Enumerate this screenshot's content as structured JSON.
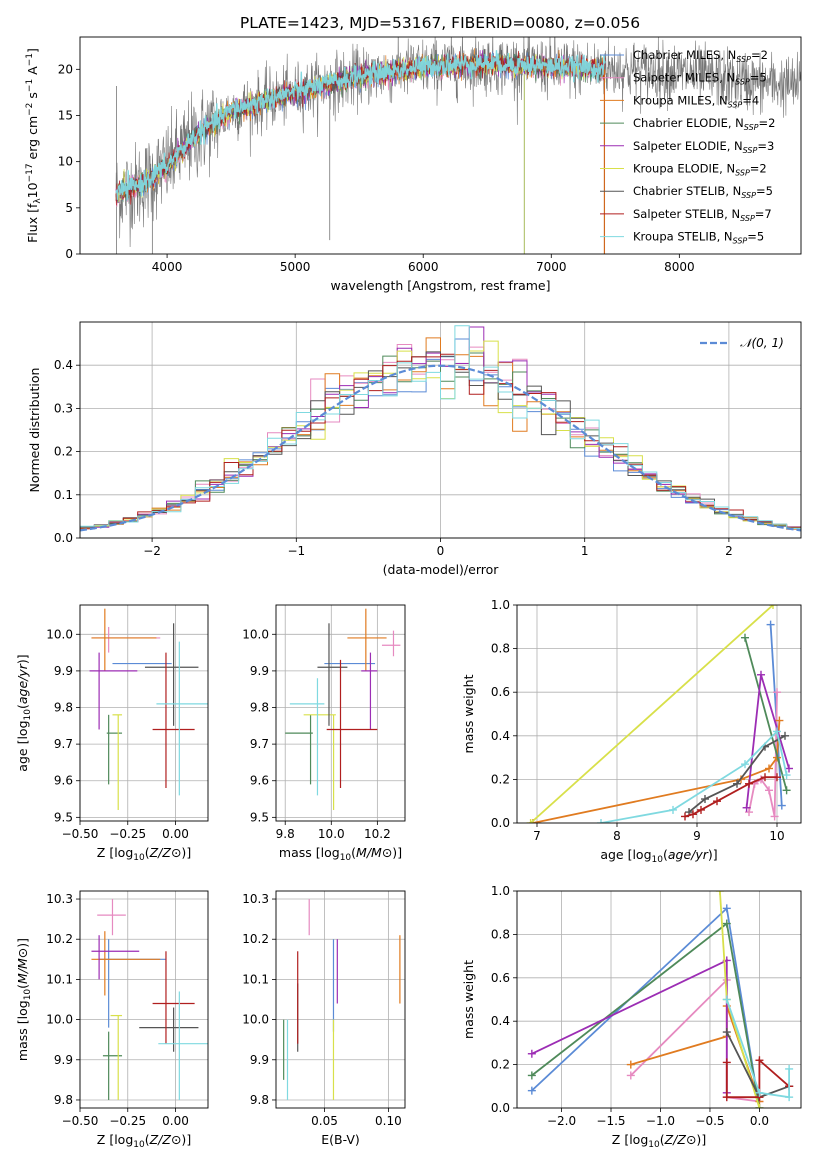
{
  "figure_title": "PLATE=1423, MJD=53167, FIBERID=0080, z=0.056",
  "colors": {
    "Chabrier MILES": "#5b8bd6",
    "Salpeter MILES": "#e68ac0",
    "Kroupa MILES": "#e07b20",
    "Chabrier ELODIE": "#4f8a5a",
    "Salpeter ELODIE": "#9c2db4",
    "Kroupa ELODIE": "#d8e04a",
    "Chabrier STELIB": "#555555",
    "Salpeter STELIB": "#b01f1f",
    "Kroupa STELIB": "#7fd9e0",
    "normal": "#5b8bd6",
    "grid": "#b0b0b0",
    "data": "#777777"
  },
  "chart_data": [
    {
      "id": "spectrum",
      "type": "line",
      "title": "PLATE=1423, MJD=53167, FIBERID=0080, z=0.056",
      "xlabel": "wavelength [Angstrom, rest frame]",
      "ylabel": "Flux [fλ10⁻¹⁷ erg cm⁻² s⁻¹ A⁻¹]",
      "xlim": [
        3320,
        8950
      ],
      "ylim": [
        0,
        23.5
      ],
      "xticks": [
        4000,
        5000,
        6000,
        7000,
        8000
      ],
      "yticks": [
        0,
        5,
        10,
        15,
        20
      ],
      "grid": false,
      "legend_position": "top-right",
      "legend": [
        {
          "label": "Chabrier MILES, N",
          "sub": "SSP",
          "suffix": "=2"
        },
        {
          "label": "Salpeter MILES, N",
          "sub": "SSP",
          "suffix": "=5"
        },
        {
          "label": "Kroupa MILES, N",
          "sub": "SSP",
          "suffix": "=4"
        },
        {
          "label": "Chabrier ELODIE, N",
          "sub": "SSP",
          "suffix": "=2"
        },
        {
          "label": "Salpeter ELODIE, N",
          "sub": "SSP",
          "suffix": "=3"
        },
        {
          "label": "Kroupa ELODIE, N",
          "sub": "SSP",
          "suffix": "=2"
        },
        {
          "label": "Chabrier STELIB, N",
          "sub": "SSP",
          "suffix": "=5"
        },
        {
          "label": "Salpeter STELIB, N",
          "sub": "SSP",
          "suffix": "=7"
        },
        {
          "label": "Kroupa STELIB, N",
          "sub": "SSP",
          "suffix": "=5"
        }
      ],
      "continuum_knots": [
        [
          3600,
          6.5
        ],
        [
          3800,
          7.5
        ],
        [
          4000,
          9.5
        ],
        [
          4200,
          12.5
        ],
        [
          4500,
          15.5
        ],
        [
          5000,
          17.5
        ],
        [
          5500,
          19.2
        ],
        [
          6000,
          20.2
        ],
        [
          6500,
          20.6
        ],
        [
          7000,
          20.2
        ],
        [
          7500,
          20.0
        ],
        [
          8000,
          19.6
        ],
        [
          8500,
          18.7
        ],
        [
          8950,
          18.2
        ]
      ],
      "model_x_range": [
        3600,
        7420
      ],
      "data_x_range": [
        3600,
        8950
      ],
      "spikes": [
        {
          "x": 3605,
          "ylow": 0,
          "yhigh": 18.2
        },
        {
          "x": 3885,
          "ylow": 0,
          "yhigh": 7
        },
        {
          "x": 5270,
          "ylow": 1.5,
          "yhigh": 17
        },
        {
          "x": 6790,
          "ylow": 0,
          "yhigh": 19.5
        },
        {
          "x": 7415,
          "ylow": 0,
          "yhigh": 20
        }
      ]
    },
    {
      "id": "residual-histogram",
      "type": "histogram",
      "xlabel": "(data-model)/error",
      "ylabel": "Normed distribution",
      "xlim": [
        -2.5,
        2.5
      ],
      "ylim": [
        0,
        0.5
      ],
      "xticks": [
        -2,
        -1,
        0,
        1,
        2
      ],
      "yticks": [
        0.0,
        0.1,
        0.2,
        0.3,
        0.4
      ],
      "grid": true,
      "bin_width": 0.1,
      "legend_position": "top-right",
      "legend": [
        {
          "label": "𝒩(0, 1)"
        }
      ],
      "reference_curve": {
        "name": "N(0,1)",
        "mean": 0,
        "sigma": 1,
        "style": "dashed"
      }
    },
    {
      "id": "age-vs-Z",
      "type": "scatter",
      "xlabel": "Z [log₁₀(Z/Z⊙)]",
      "ylabel": "age  [log₁₀(age/yr)]",
      "xlim": [
        -0.5,
        0.17
      ],
      "ylim": [
        9.49,
        10.08
      ],
      "xticks": [
        -0.5,
        -0.25,
        0.0
      ],
      "xtick_labels": [
        "−0.50",
        "−0.25",
        "0.00"
      ],
      "yticks": [
        9.5,
        9.6,
        9.7,
        9.8,
        9.9,
        10.0
      ],
      "grid": true,
      "points": [
        {
          "x": -0.33,
          "xlo": -0.33,
          "xhi": -0.02,
          "y": 9.92,
          "ylo": 9.92,
          "yhi": 9.92,
          "series": "Chabrier MILES"
        },
        {
          "x": -0.35,
          "xlo": -0.44,
          "xhi": -0.08,
          "y": 9.99,
          "ylo": 9.95,
          "yhi": 10.02,
          "series": "Salpeter MILES"
        },
        {
          "x": -0.37,
          "xlo": -0.44,
          "xhi": -0.1,
          "y": 9.99,
          "ylo": 9.9,
          "yhi": 10.07,
          "series": "Kroupa MILES"
        },
        {
          "x": -0.35,
          "xlo": -0.36,
          "xhi": -0.28,
          "y": 9.73,
          "ylo": 9.59,
          "yhi": 9.78,
          "series": "Chabrier ELODIE"
        },
        {
          "x": -0.4,
          "xlo": -0.45,
          "xhi": -0.2,
          "y": 9.9,
          "ylo": 9.74,
          "yhi": 9.95,
          "series": "Salpeter ELODIE"
        },
        {
          "x": -0.3,
          "xlo": -0.33,
          "xhi": -0.28,
          "y": 9.78,
          "ylo": 9.52,
          "yhi": 9.78,
          "series": "Kroupa ELODIE"
        },
        {
          "x": -0.01,
          "xlo": -0.16,
          "xhi": 0.12,
          "y": 9.91,
          "ylo": 9.75,
          "yhi": 10.03,
          "series": "Chabrier STELIB"
        },
        {
          "x": -0.05,
          "xlo": -0.12,
          "xhi": 0.1,
          "y": 9.74,
          "ylo": 9.58,
          "yhi": 9.95,
          "series": "Salpeter STELIB"
        },
        {
          "x": 0.02,
          "xlo": -0.1,
          "xhi": 0.17,
          "y": 9.81,
          "ylo": 9.56,
          "yhi": 9.98,
          "series": "Kroupa STELIB"
        }
      ]
    },
    {
      "id": "age-vs-mass",
      "type": "scatter",
      "xlabel": "mass [log₁₀(M/M⊙)]",
      "ylabel": "",
      "xlim": [
        9.76,
        10.32
      ],
      "ylim": [
        9.49,
        10.08
      ],
      "xticks": [
        9.8,
        10.0,
        10.2
      ],
      "xtick_labels": [
        "9.8",
        "10.0",
        "10.2"
      ],
      "yticks": [
        9.5,
        9.6,
        9.7,
        9.8,
        9.9,
        10.0
      ],
      "grid": true,
      "points": [
        {
          "x": 10.06,
          "xlo": 9.97,
          "xhi": 10.19,
          "y": 9.92,
          "ylo": 9.92,
          "yhi": 9.92,
          "series": "Chabrier MILES"
        },
        {
          "x": 10.27,
          "xlo": 10.22,
          "xhi": 10.3,
          "y": 9.97,
          "ylo": 9.94,
          "yhi": 10.01,
          "series": "Salpeter MILES"
        },
        {
          "x": 10.15,
          "xlo": 10.07,
          "xhi": 10.24,
          "y": 9.99,
          "ylo": 9.9,
          "yhi": 10.07,
          "series": "Kroupa MILES"
        },
        {
          "x": 9.91,
          "xlo": 9.8,
          "xhi": 9.92,
          "y": 9.73,
          "ylo": 9.59,
          "yhi": 9.78,
          "series": "Chabrier ELODIE"
        },
        {
          "x": 10.17,
          "xlo": 10.13,
          "xhi": 10.2,
          "y": 9.9,
          "ylo": 9.74,
          "yhi": 9.95,
          "series": "Salpeter ELODIE"
        },
        {
          "x": 10.01,
          "xlo": 9.88,
          "xhi": 10.02,
          "y": 9.78,
          "ylo": 9.52,
          "yhi": 9.78,
          "series": "Kroupa ELODIE"
        },
        {
          "x": 9.99,
          "xlo": 9.94,
          "xhi": 10.07,
          "y": 9.91,
          "ylo": 9.75,
          "yhi": 10.03,
          "series": "Chabrier STELIB"
        },
        {
          "x": 10.04,
          "xlo": 9.98,
          "xhi": 10.2,
          "y": 9.74,
          "ylo": 9.58,
          "yhi": 9.93,
          "series": "Salpeter STELIB"
        },
        {
          "x": 9.94,
          "xlo": 9.82,
          "xhi": 9.97,
          "y": 9.81,
          "ylo": 9.56,
          "yhi": 9.88,
          "series": "Kroupa STELIB"
        }
      ]
    },
    {
      "id": "mass-weight-vs-age",
      "type": "line",
      "xlabel": "age  [log₁₀(age/yr)]",
      "ylabel": "mass weight",
      "xlim": [
        6.75,
        10.3
      ],
      "ylim": [
        0,
        1.0
      ],
      "xticks": [
        7,
        8,
        9,
        10
      ],
      "yticks": [
        0.0,
        0.2,
        0.4,
        0.6,
        0.8,
        1.0
      ],
      "grid": true,
      "series": [
        {
          "name": "Chabrier MILES",
          "x": [
            9.92,
            10.06
          ],
          "y": [
            0.91,
            0.08
          ]
        },
        {
          "name": "Salpeter MILES",
          "x": [
            9.65,
            9.72,
            9.8,
            9.9,
            9.97,
            10.0
          ],
          "y": [
            0.05,
            0.18,
            0.2,
            0.15,
            0.03,
            0.6
          ]
        },
        {
          "name": "Kroupa MILES",
          "x": [
            6.95,
            9.55,
            9.9,
            10.0,
            10.03
          ],
          "y": [
            0.0,
            0.2,
            0.25,
            0.3,
            0.47
          ]
        },
        {
          "name": "Chabrier ELODIE",
          "x": [
            9.6,
            10.12
          ],
          "y": [
            0.85,
            0.15
          ]
        },
        {
          "name": "Salpeter ELODIE",
          "x": [
            9.62,
            9.8,
            10.15
          ],
          "y": [
            0.07,
            0.68,
            0.25
          ]
        },
        {
          "name": "Kroupa ELODIE",
          "x": [
            6.92,
            9.95
          ],
          "y": [
            0.0,
            1.0
          ]
        },
        {
          "name": "Chabrier STELIB",
          "x": [
            8.9,
            9.1,
            9.5,
            9.85,
            10.1
          ],
          "y": [
            0.05,
            0.11,
            0.18,
            0.35,
            0.4
          ]
        },
        {
          "name": "Salpeter STELIB",
          "x": [
            8.85,
            8.95,
            9.05,
            9.25,
            9.65,
            9.85,
            10.0
          ],
          "y": [
            0.03,
            0.04,
            0.06,
            0.1,
            0.18,
            0.21,
            0.21
          ]
        },
        {
          "name": "Kroupa STELIB",
          "x": [
            7.8,
            8.7,
            9.6,
            10.0,
            10.12
          ],
          "y": [
            0.0,
            0.06,
            0.27,
            0.42,
            0.22
          ]
        }
      ]
    },
    {
      "id": "mass-vs-Z",
      "type": "scatter",
      "xlabel": "Z [log₁₀(Z/Z⊙)]",
      "ylabel": "mass [log₁₀(M/M⊙)]",
      "xlim": [
        -0.5,
        0.17
      ],
      "ylim": [
        9.78,
        10.32
      ],
      "xticks": [
        -0.5,
        -0.25,
        0.0
      ],
      "xtick_labels": [
        "−0.50",
        "−0.25",
        "0.00"
      ],
      "yticks": [
        9.8,
        9.9,
        10.0,
        10.1,
        10.2,
        10.3
      ],
      "grid": true,
      "points": [
        {
          "x": -0.35,
          "xlo": -0.4,
          "xhi": -0.05,
          "y": 10.15,
          "ylo": 9.98,
          "yhi": 10.2,
          "series": "Chabrier MILES"
        },
        {
          "x": -0.33,
          "xlo": -0.41,
          "xhi": -0.26,
          "y": 10.26,
          "ylo": 10.21,
          "yhi": 10.3,
          "series": "Salpeter MILES"
        },
        {
          "x": -0.37,
          "xlo": -0.44,
          "xhi": -0.08,
          "y": 10.15,
          "ylo": 10.06,
          "yhi": 10.22,
          "series": "Kroupa MILES"
        },
        {
          "x": -0.35,
          "xlo": -0.38,
          "xhi": -0.28,
          "y": 9.91,
          "ylo": 9.8,
          "yhi": 9.97,
          "series": "Chabrier ELODIE"
        },
        {
          "x": -0.4,
          "xlo": -0.44,
          "xhi": -0.19,
          "y": 10.17,
          "ylo": 10.1,
          "yhi": 10.21,
          "series": "Salpeter ELODIE"
        },
        {
          "x": -0.3,
          "xlo": -0.34,
          "xhi": -0.28,
          "y": 10.01,
          "ylo": 9.8,
          "yhi": 10.01,
          "series": "Kroupa ELODIE"
        },
        {
          "x": -0.01,
          "xlo": -0.19,
          "xhi": 0.12,
          "y": 9.98,
          "ylo": 9.92,
          "yhi": 10.03,
          "series": "Chabrier STELIB"
        },
        {
          "x": -0.05,
          "xlo": -0.12,
          "xhi": 0.1,
          "y": 10.04,
          "ylo": 9.94,
          "yhi": 10.17,
          "series": "Salpeter STELIB"
        },
        {
          "x": 0.02,
          "xlo": -0.09,
          "xhi": 0.17,
          "y": 9.94,
          "ylo": 9.8,
          "yhi": 10.07,
          "series": "Kroupa STELIB"
        }
      ]
    },
    {
      "id": "mass-vs-ebv",
      "type": "scatter",
      "xlabel": "E(B-V)",
      "ylabel": "",
      "xlim": [
        0.012,
        0.113
      ],
      "ylim": [
        9.78,
        10.32
      ],
      "xticks": [
        0.05,
        0.1
      ],
      "xtick_labels": [
        "0.05",
        "0.10"
      ],
      "yticks": [
        9.8,
        9.9,
        10.0,
        10.1,
        10.2,
        10.3
      ],
      "grid": true,
      "points": [
        {
          "x": 0.057,
          "y": 10.15,
          "ylo": 9.97,
          "yhi": 10.2,
          "series": "Chabrier MILES"
        },
        {
          "x": 0.038,
          "y": 10.26,
          "ylo": 10.21,
          "yhi": 10.3,
          "series": "Salpeter MILES"
        },
        {
          "x": 0.109,
          "y": 10.13,
          "ylo": 10.04,
          "yhi": 10.21,
          "series": "Kroupa MILES"
        },
        {
          "x": 0.018,
          "y": 9.94,
          "ylo": 9.85,
          "yhi": 10.0,
          "series": "Chabrier ELODIE"
        },
        {
          "x": 0.06,
          "y": 10.13,
          "ylo": 10.04,
          "yhi": 10.2,
          "series": "Salpeter ELODIE"
        },
        {
          "x": 0.057,
          "y": 9.9,
          "ylo": 9.8,
          "yhi": 10.0,
          "series": "Kroupa ELODIE"
        },
        {
          "x": 0.029,
          "y": 10.02,
          "ylo": 9.92,
          "yhi": 10.09,
          "series": "Chabrier STELIB"
        },
        {
          "x": 0.029,
          "y": 10.04,
          "ylo": 9.94,
          "yhi": 10.17,
          "series": "Salpeter STELIB"
        },
        {
          "x": 0.021,
          "y": 9.92,
          "ylo": 9.8,
          "yhi": 10.0,
          "series": "Kroupa STELIB"
        }
      ]
    },
    {
      "id": "mass-weight-vs-Z",
      "type": "line",
      "xlabel": "Z [log₁₀(Z/Z⊙)]",
      "ylabel": "mass weight",
      "xlim": [
        -2.45,
        0.42
      ],
      "ylim": [
        0,
        1.0
      ],
      "xticks": [
        -2.0,
        -1.5,
        -1.0,
        -0.5,
        0.0
      ],
      "xtick_labels": [
        "−2.0",
        "−1.5",
        "−1.0",
        "−0.5",
        "0.0"
      ],
      "yticks": [
        0.0,
        0.2,
        0.4,
        0.6,
        0.8,
        1.0
      ],
      "grid": true,
      "series": [
        {
          "name": "Chabrier MILES",
          "x": [
            -2.3,
            -0.33,
            0.0
          ],
          "y": [
            0.08,
            0.92,
            0.0
          ]
        },
        {
          "name": "Salpeter MILES",
          "x": [
            -1.3,
            -0.33,
            -0.33,
            0.0
          ],
          "y": [
            0.15,
            0.59,
            0.05,
            0.03
          ]
        },
        {
          "name": "Kroupa MILES",
          "x": [
            -1.3,
            -0.33,
            -0.33,
            0.0
          ],
          "y": [
            0.2,
            0.33,
            0.47,
            0.03
          ]
        },
        {
          "name": "Chabrier ELODIE",
          "x": [
            -2.3,
            -0.33,
            0.0
          ],
          "y": [
            0.15,
            0.85,
            0.0
          ]
        },
        {
          "name": "Salpeter ELODIE",
          "x": [
            -2.3,
            -0.33,
            -0.33
          ],
          "y": [
            0.25,
            0.68,
            0.07
          ]
        },
        {
          "name": "Kroupa ELODIE",
          "x": [
            -0.4,
            -0.33,
            0.0
          ],
          "y": [
            1.0,
            0.5,
            0.0
          ]
        },
        {
          "name": "Chabrier STELIB",
          "x": [
            -0.33,
            0.0,
            0.3,
            0.3
          ],
          "y": [
            0.35,
            0.05,
            0.1,
            0.1
          ]
        },
        {
          "name": "Salpeter STELIB",
          "x": [
            -0.33,
            -0.33,
            0.0,
            0.0,
            0.3
          ],
          "y": [
            0.21,
            0.05,
            0.05,
            0.22,
            0.1
          ]
        },
        {
          "name": "Kroupa STELIB",
          "x": [
            -0.33,
            0.0,
            0.3,
            0.3
          ],
          "y": [
            0.5,
            0.07,
            0.05,
            0.18
          ]
        }
      ]
    }
  ]
}
